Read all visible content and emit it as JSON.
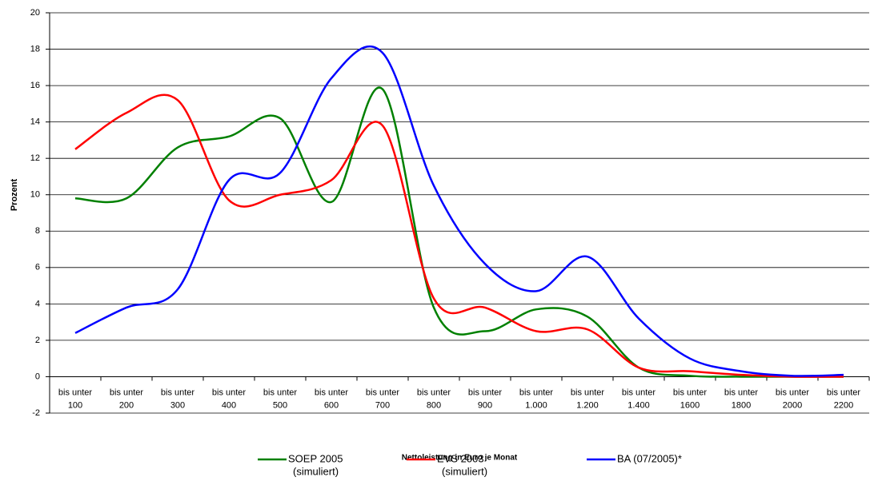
{
  "chart_data": {
    "type": "line",
    "x_label": "Nettoleistung in Euro je Monat",
    "y_label": "Prozent",
    "categories": [
      [
        "bis unter",
        "100"
      ],
      [
        "bis unter",
        "200"
      ],
      [
        "bis unter",
        "300"
      ],
      [
        "bis unter",
        "400"
      ],
      [
        "bis unter",
        "500"
      ],
      [
        "bis unter",
        "600"
      ],
      [
        "bis unter",
        "700"
      ],
      [
        "bis unter",
        "800"
      ],
      [
        "bis unter",
        "900"
      ],
      [
        "bis unter",
        "1.000"
      ],
      [
        "bis unter",
        "1.200"
      ],
      [
        "bis unter",
        "1.400"
      ],
      [
        "bis unter",
        "1600"
      ],
      [
        "bis unter",
        "1800"
      ],
      [
        "bis unter",
        "2000"
      ],
      [
        "bis unter",
        "2200"
      ]
    ],
    "series": [
      {
        "name": [
          "SOEP 2005",
          "(simuliert)"
        ],
        "color": "#008000",
        "values": [
          9.8,
          9.8,
          12.6,
          13.2,
          14.2,
          9.6,
          15.8,
          3.8,
          2.5,
          3.7,
          3.3,
          0.5,
          0.05,
          0,
          0,
          0
        ]
      },
      {
        "name": [
          "EVS 2003",
          "(simuliert)"
        ],
        "color": "#ff0000",
        "values": [
          12.5,
          14.5,
          15.2,
          9.7,
          10.0,
          10.8,
          13.8,
          4.3,
          3.8,
          2.5,
          2.6,
          0.5,
          0.3,
          0.1,
          0,
          0
        ]
      },
      {
        "name": [
          "BA (07/2005)*"
        ],
        "color": "#0000ff",
        "values": [
          2.4,
          3.8,
          4.8,
          10.8,
          11.2,
          16.4,
          17.8,
          10.5,
          6.2,
          4.7,
          6.6,
          3.2,
          1.0,
          0.3,
          0.05,
          0.1
        ]
      }
    ],
    "ylim": [
      -2,
      20
    ],
    "yticks": [
      -2,
      0,
      2,
      4,
      6,
      8,
      10,
      12,
      14,
      16,
      18,
      20
    ],
    "grid": true
  }
}
